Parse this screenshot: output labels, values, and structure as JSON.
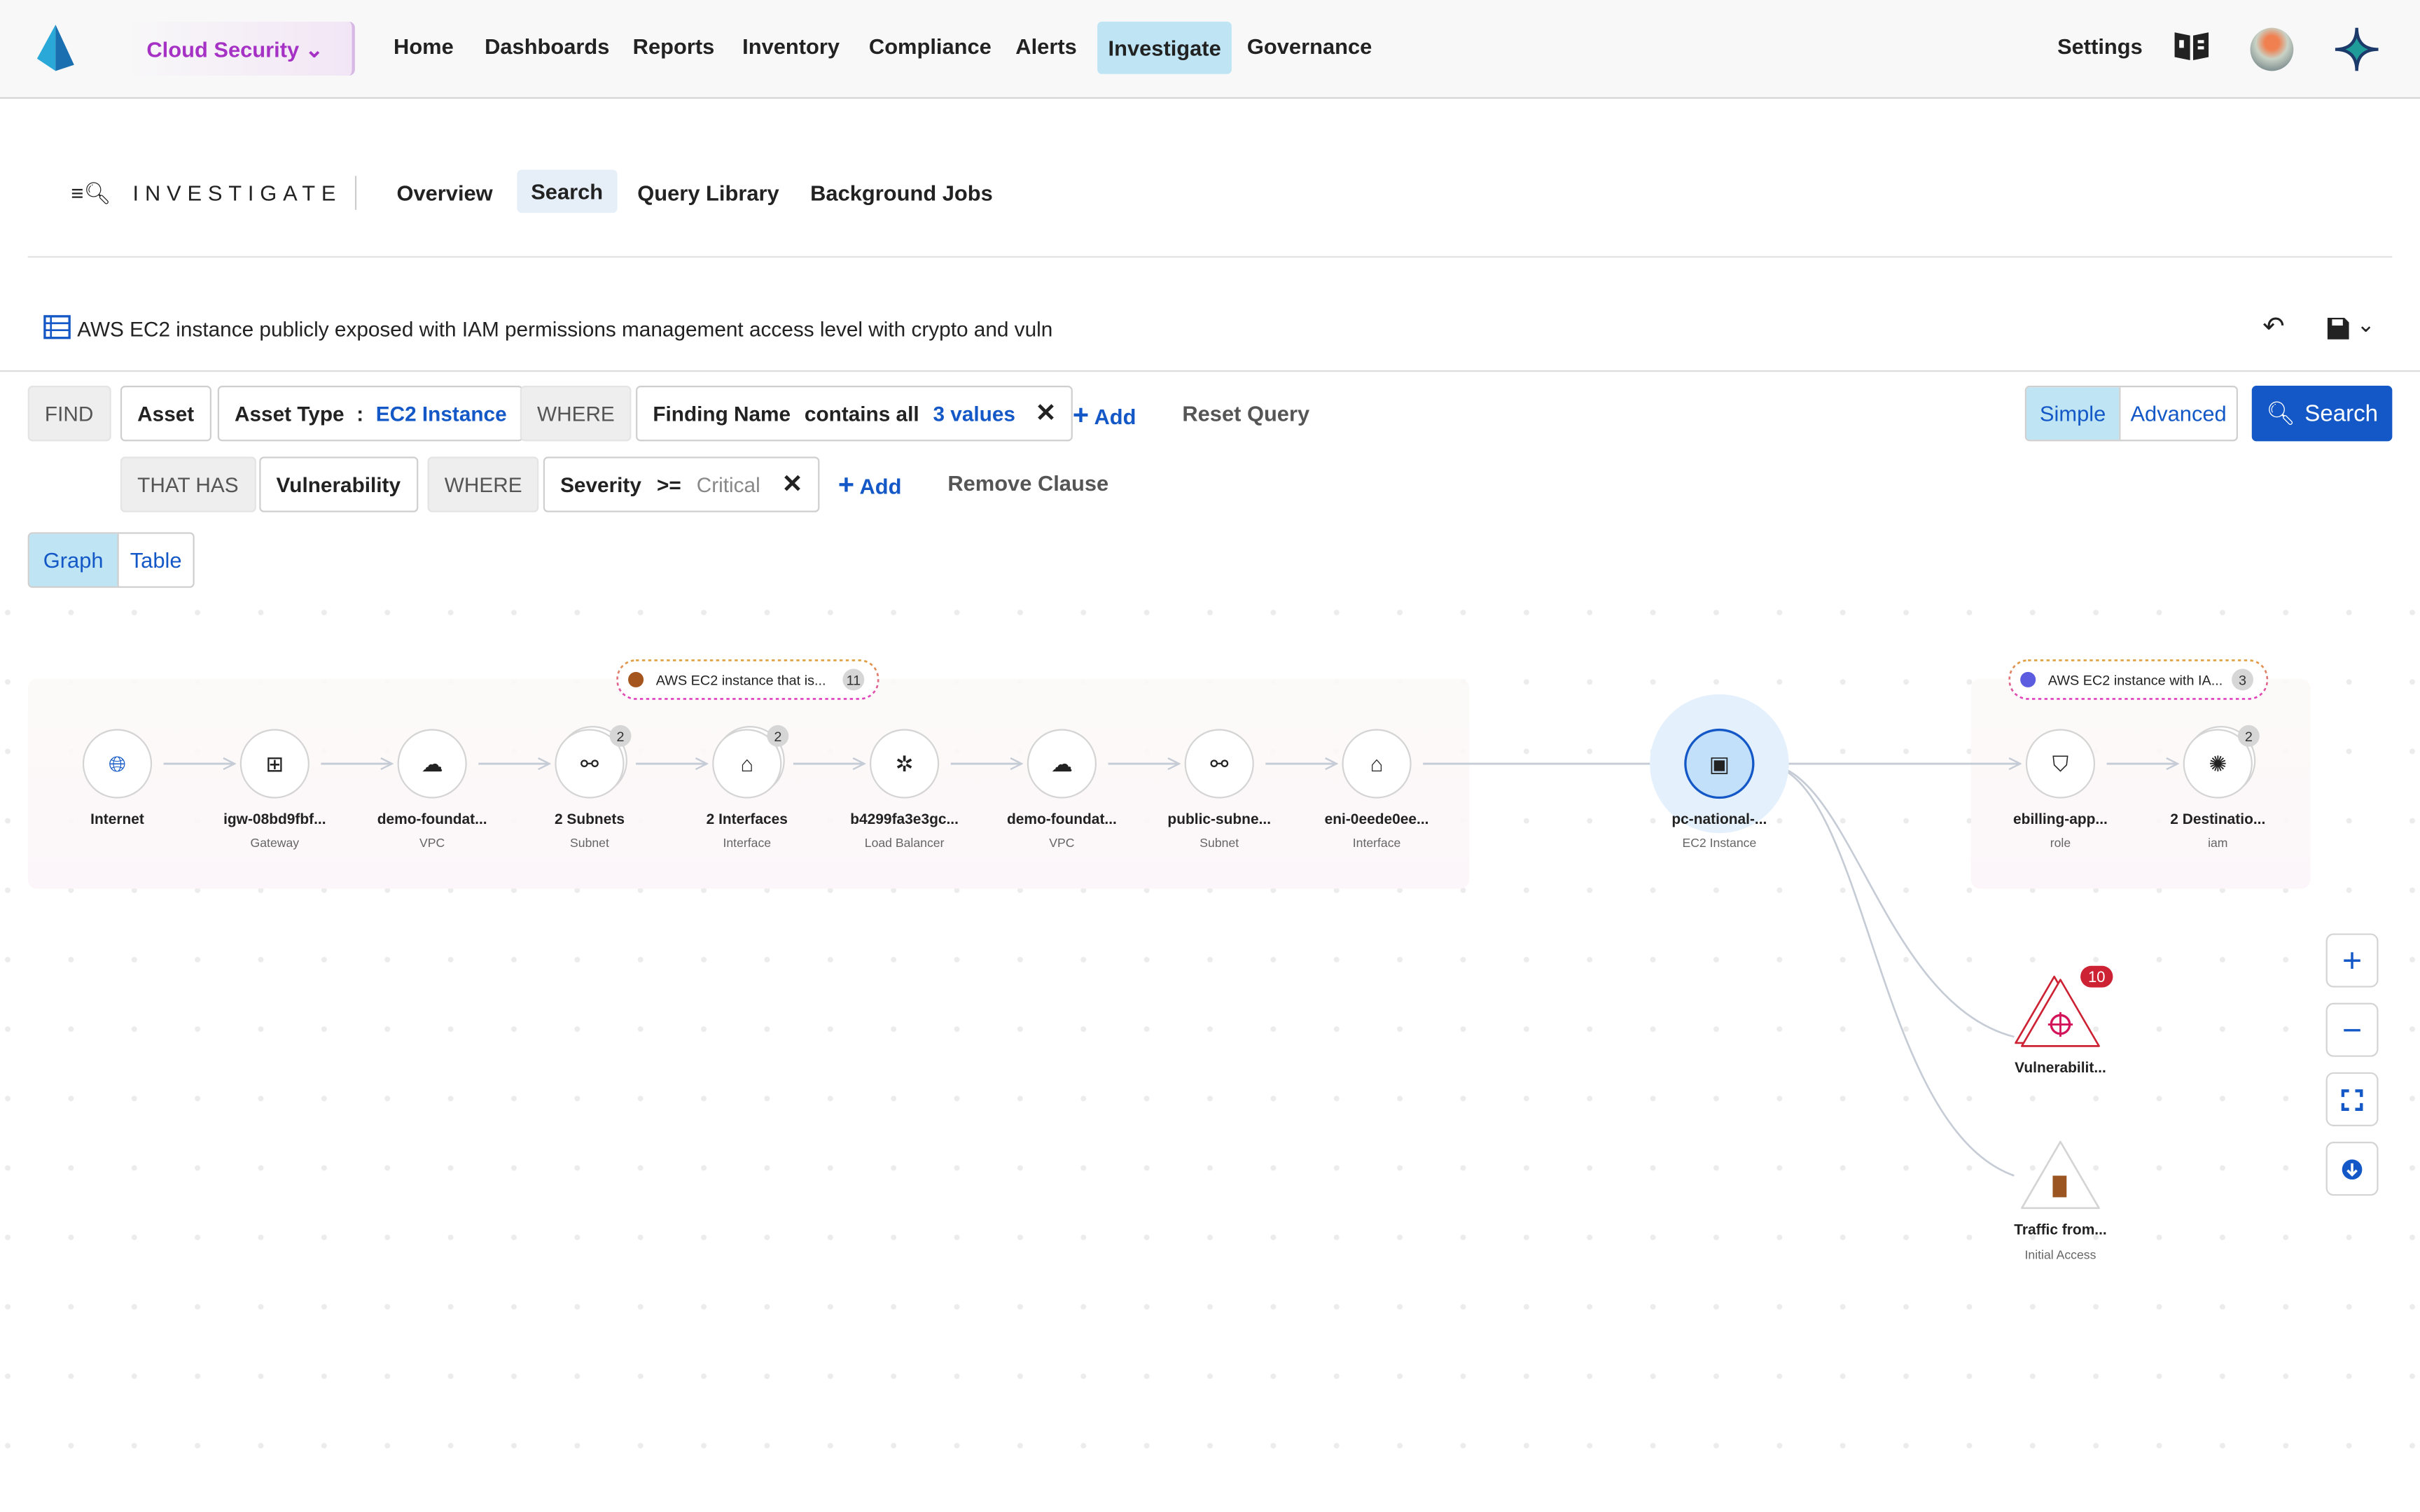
{
  "topnav": {
    "product": "Cloud Security",
    "items": [
      "Home",
      "Dashboards",
      "Reports",
      "Inventory",
      "Compliance",
      "Alerts",
      "Investigate",
      "Governance"
    ],
    "active": "Investigate",
    "settings": "Settings"
  },
  "investigate": {
    "title": "INVESTIGATE",
    "tabs": [
      "Overview",
      "Search",
      "Query Library",
      "Background Jobs"
    ],
    "active_tab": "Search"
  },
  "query": {
    "title": "AWS EC2 instance publicly exposed with IAM permissions management access level with crypto and vuln"
  },
  "clause1": {
    "find": "FIND",
    "asset": "Asset",
    "asset_type_label": "Asset Type",
    "colon": ":",
    "asset_type_value": "EC2 Instance",
    "where": "WHERE",
    "field": "Finding Name",
    "operator": "contains all",
    "value": "3 values",
    "add": "Add",
    "reset": "Reset Query"
  },
  "clause2": {
    "that_has": "THAT HAS",
    "entity": "Vulnerability",
    "where": "WHERE",
    "field": "Severity",
    "operator": ">=",
    "value": "Critical",
    "add": "Add",
    "remove": "Remove Clause"
  },
  "mode": {
    "simple": "Simple",
    "advanced": "Advanced",
    "active": "Simple"
  },
  "search_button": "Search",
  "view": {
    "graph": "Graph",
    "table": "Table",
    "active": "Graph"
  },
  "groups": [
    {
      "label": "AWS EC2 instance that is...",
      "count": "11"
    },
    {
      "label": "AWS EC2 instance with IA...",
      "count": "3"
    }
  ],
  "nodes": [
    {
      "label": "Internet",
      "sub": "",
      "icon": "globe-icon"
    },
    {
      "label": "igw-08bd9fbf...",
      "sub": "Gateway",
      "icon": "network-icon"
    },
    {
      "label": "demo-foundat...",
      "sub": "VPC",
      "icon": "cloud-icon"
    },
    {
      "label": "2 Subnets",
      "sub": "Subnet",
      "icon": "subnet-icon",
      "count": "2"
    },
    {
      "label": "2 Interfaces",
      "sub": "Interface",
      "icon": "ethernet-icon",
      "count": "2"
    },
    {
      "label": "b4299fa3e3gc...",
      "sub": "Load Balancer",
      "icon": "load-balancer-icon"
    },
    {
      "label": "demo-foundat...",
      "sub": "VPC",
      "icon": "cloud-icon"
    },
    {
      "label": "public-subne...",
      "sub": "Subnet",
      "icon": "subnet-icon"
    },
    {
      "label": "eni-0eede0ee...",
      "sub": "Interface",
      "icon": "ethernet-icon"
    },
    {
      "label": "pc-national-...",
      "sub": "EC2 Instance",
      "icon": "chip-icon",
      "selected": true
    },
    {
      "label": "ebilling-app...",
      "sub": "role",
      "icon": "shield-user-icon"
    },
    {
      "label": "2 Destinatio...",
      "sub": "iam",
      "icon": "burst-icon",
      "count": "2"
    }
  ],
  "findings": [
    {
      "label": "Vulnerabilit...",
      "sub": "",
      "icon": "crosshair-icon",
      "count": "10",
      "color": "#cc2233"
    },
    {
      "label": "Traffic from...",
      "sub": "Initial Access",
      "icon": "door-icon",
      "color": "#9a5520"
    }
  ],
  "colors": {
    "accent": "#1358c6",
    "active_nav": "#bfe5f5",
    "product": "#a532c4",
    "danger": "#cc2233"
  }
}
